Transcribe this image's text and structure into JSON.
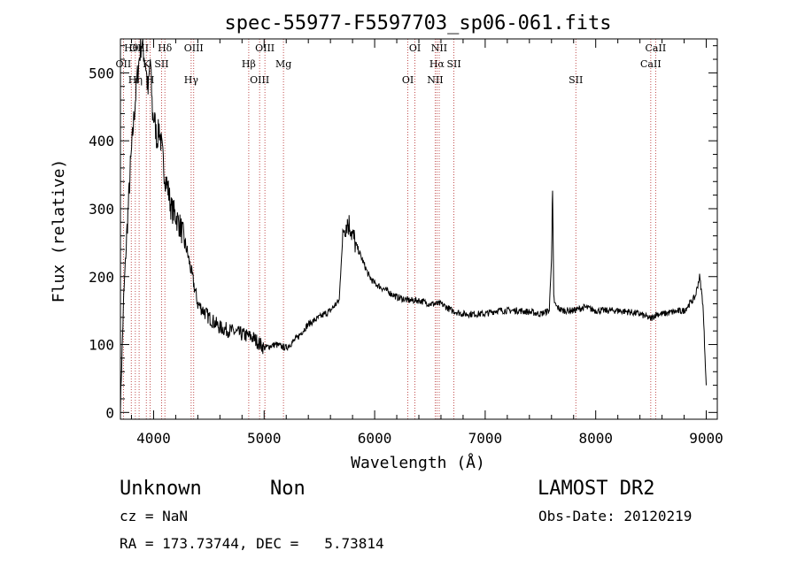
{
  "chart_data": {
    "type": "line",
    "title": "spec-55977-F5597703_sp06-061.fits",
    "xlabel": "Wavelength (Å)",
    "ylabel": "Flux (relative)",
    "xlim": [
      3700,
      9100
    ],
    "ylim": [
      -10,
      550
    ],
    "x_ticks": [
      4000,
      5000,
      6000,
      7000,
      8000,
      9000
    ],
    "y_ticks": [
      0,
      100,
      200,
      300,
      400,
      500
    ],
    "grid": false,
    "series": [
      {
        "x": [
          3700,
          3730,
          3760,
          3790,
          3820,
          3850,
          3870,
          3890,
          3910,
          3930,
          3950,
          3970,
          3990,
          4010,
          4030,
          4050,
          4080,
          4100,
          4130,
          4160,
          4200,
          4250,
          4300,
          4350,
          4400,
          4450,
          4500,
          4600,
          4700,
          4800,
          4900,
          5000,
          5100,
          5200,
          5300,
          5400,
          5500,
          5600,
          5680,
          5700,
          5720,
          5750,
          5780,
          5800,
          5850,
          5900,
          5950,
          6000,
          6100,
          6200,
          6300,
          6400,
          6500,
          6600,
          6700,
          6800,
          6900,
          7000,
          7100,
          7200,
          7300,
          7400,
          7500,
          7580,
          7600,
          7610,
          7620,
          7630,
          7650,
          7700,
          7800,
          7900,
          8000,
          8100,
          8200,
          8300,
          8400,
          8500,
          8550,
          8600,
          8700,
          8800,
          8850,
          8900,
          8940,
          8970,
          9000
        ],
        "y": [
          10,
          170,
          270,
          360,
          430,
          490,
          520,
          545,
          530,
          510,
          470,
          520,
          440,
          430,
          400,
          420,
          380,
          350,
          330,
          300,
          290,
          270,
          240,
          200,
          160,
          150,
          140,
          125,
          120,
          115,
          110,
          95,
          100,
          95,
          110,
          130,
          140,
          150,
          165,
          230,
          270,
          280,
          275,
          260,
          240,
          220,
          200,
          190,
          180,
          170,
          165,
          165,
          160,
          160,
          150,
          145,
          145,
          145,
          150,
          150,
          150,
          148,
          145,
          150,
          230,
          320,
          170,
          160,
          155,
          150,
          150,
          155,
          150,
          150,
          150,
          148,
          145,
          138,
          145,
          145,
          148,
          150,
          160,
          170,
          200,
          160,
          40
        ]
      }
    ],
    "lines": [
      {
        "label": "Hθ",
        "x": 3798
      },
      {
        "label": "OII",
        "x": 3727
      },
      {
        "label": "Hη",
        "x": 3835
      },
      {
        "label": "OIII",
        "x": 3869
      },
      {
        "label": "K",
        "x": 3934
      },
      {
        "label": "H",
        "x": 3969
      },
      {
        "label": "Hδ",
        "x": 4102
      },
      {
        "label": "SII",
        "x": 4072
      },
      {
        "label": "Hγ",
        "x": 4340
      },
      {
        "label": "OIII",
        "x": 4363
      },
      {
        "label": "Hβ",
        "x": 4861
      },
      {
        "label": "OIII",
        "x": 4959
      },
      {
        "label": "OIII",
        "x": 5007
      },
      {
        "label": "Mg",
        "x": 5175
      },
      {
        "label": "OI",
        "x": 6300
      },
      {
        "label": "OI",
        "x": 6364
      },
      {
        "label": "Hα",
        "x": 6563
      },
      {
        "label": "NII",
        "x": 6548
      },
      {
        "label": "NII",
        "x": 6584
      },
      {
        "label": "SII",
        "x": 6717
      },
      {
        "label": "SII",
        "x": 7820
      },
      {
        "label": "CaII",
        "x": 8542
      },
      {
        "label": "CaII",
        "x": 8498
      }
    ],
    "line_color": "#b22222"
  },
  "info": {
    "class_name": "Unknown",
    "subclass": "Non",
    "survey": "LAMOST DR2",
    "cz": "cz = NaN",
    "obs_date": "Obs-Date: 20120219",
    "coords": "RA = 173.73744, DEC =   5.73814"
  }
}
